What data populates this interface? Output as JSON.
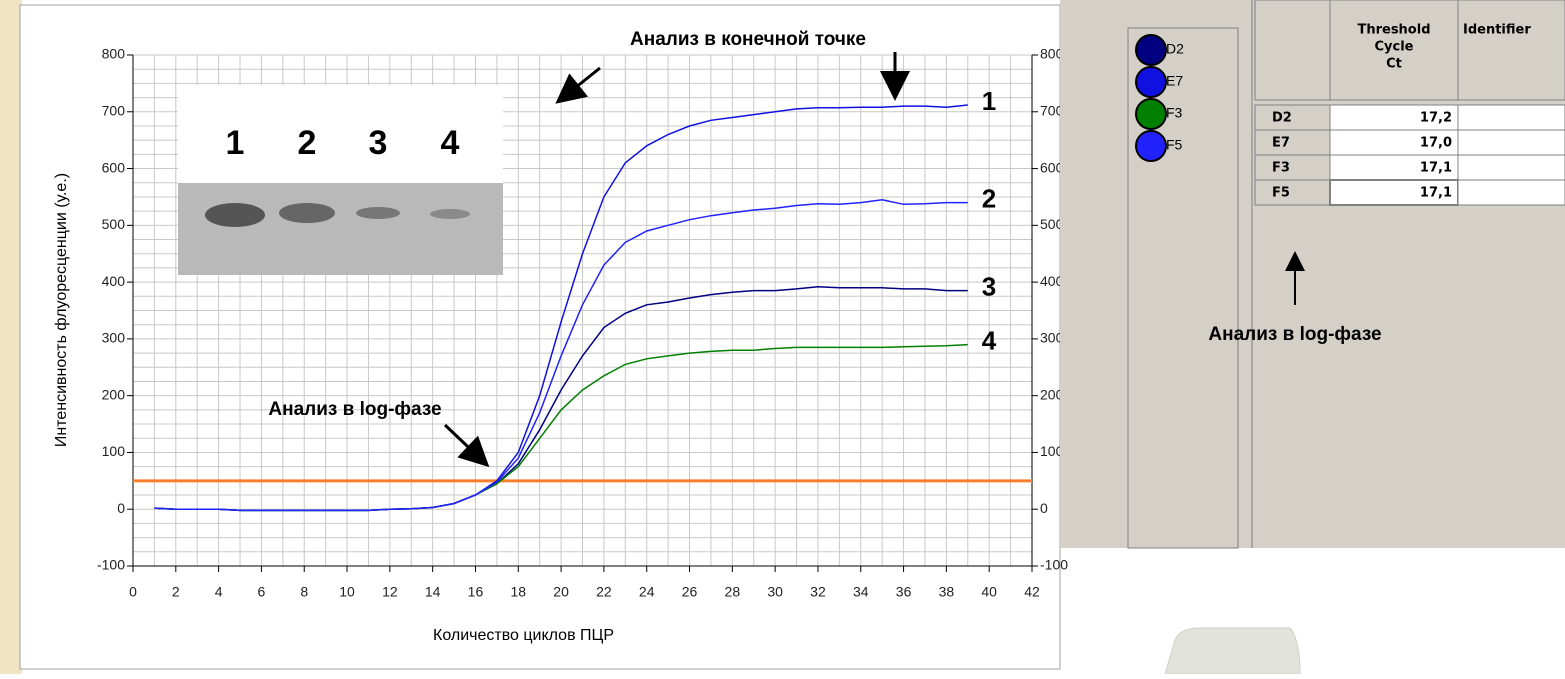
{
  "chart_data": {
    "type": "line",
    "title": "Анализ в конечной точке",
    "annotation": "Анализ в log-фазе",
    "xlabel": "Количество циклов ПЦР",
    "ylabel": "Интенсивность флуоресценции (у.е.)",
    "x": [
      1,
      2,
      3,
      4,
      5,
      6,
      7,
      8,
      9,
      10,
      11,
      12,
      13,
      14,
      15,
      16,
      17,
      18,
      19,
      20,
      21,
      22,
      23,
      24,
      25,
      26,
      27,
      28,
      29,
      30,
      31,
      32,
      33,
      34,
      35,
      36,
      37,
      38,
      39
    ],
    "series": [
      {
        "name": "D2",
        "color": "#000080",
        "label": "3",
        "values": [
          2,
          0,
          0,
          0,
          -2,
          -2,
          -2,
          -2,
          -2,
          -2,
          -2,
          0,
          1,
          3,
          10,
          25,
          45,
          80,
          140,
          210,
          270,
          320,
          345,
          360,
          365,
          372,
          378,
          382,
          385,
          385,
          388,
          392,
          390,
          390,
          390,
          388,
          388,
          385,
          385
        ]
      },
      {
        "name": "E7",
        "color": "#1010e0",
        "label": "1",
        "values": [
          2,
          0,
          0,
          0,
          -2,
          -2,
          -2,
          -2,
          -2,
          -2,
          -2,
          0,
          1,
          3,
          10,
          25,
          50,
          100,
          200,
          330,
          450,
          550,
          610,
          640,
          660,
          675,
          685,
          690,
          695,
          700,
          705,
          707,
          707,
          708,
          708,
          710,
          710,
          708,
          712
        ]
      },
      {
        "name": "F3",
        "color": "#008000",
        "label": "4",
        "values": [
          2,
          0,
          0,
          0,
          -2,
          -2,
          -2,
          -2,
          -2,
          -2,
          -2,
          0,
          1,
          3,
          10,
          25,
          45,
          75,
          125,
          175,
          210,
          235,
          255,
          265,
          270,
          275,
          278,
          280,
          280,
          283,
          285,
          285,
          285,
          285,
          285,
          286,
          287,
          288,
          290
        ]
      },
      {
        "name": "F5",
        "color": "#2222ff",
        "label": "2",
        "values": [
          2,
          0,
          0,
          0,
          -2,
          -2,
          -2,
          -2,
          -2,
          -2,
          -2,
          0,
          1,
          3,
          10,
          25,
          48,
          90,
          170,
          270,
          360,
          430,
          470,
          490,
          500,
          510,
          517,
          522,
          527,
          530,
          535,
          538,
          537,
          540,
          545,
          537,
          538,
          540,
          540
        ]
      }
    ],
    "threshold": 50,
    "threshold_color": "#ff7f2a",
    "xlim": [
      0,
      42
    ],
    "xticks": [
      0,
      2,
      4,
      6,
      8,
      10,
      12,
      14,
      16,
      18,
      20,
      22,
      24,
      26,
      28,
      30,
      32,
      34,
      36,
      38,
      40,
      42
    ],
    "ylim": [
      -100,
      800
    ],
    "yticks": [
      -100,
      0,
      100,
      200,
      300,
      400,
      500,
      600,
      700,
      800
    ],
    "y2lim": [
      -100,
      800
    ],
    "y2ticks": [
      -100,
      0,
      100,
      200,
      300,
      400,
      500,
      600,
      700,
      800
    ],
    "grid": true,
    "gel_lanes": [
      "1",
      "2",
      "3",
      "4"
    ]
  },
  "table": {
    "header": [
      "Threshold",
      "Cycle",
      "Ct"
    ],
    "header2": "Identifier",
    "rows": [
      [
        "D2",
        "17,2"
      ],
      [
        "E7",
        "17,0"
      ],
      [
        "F3",
        "17,1"
      ],
      [
        "F5",
        "17,1"
      ]
    ]
  },
  "table_note": "Анализ в log-фазе"
}
